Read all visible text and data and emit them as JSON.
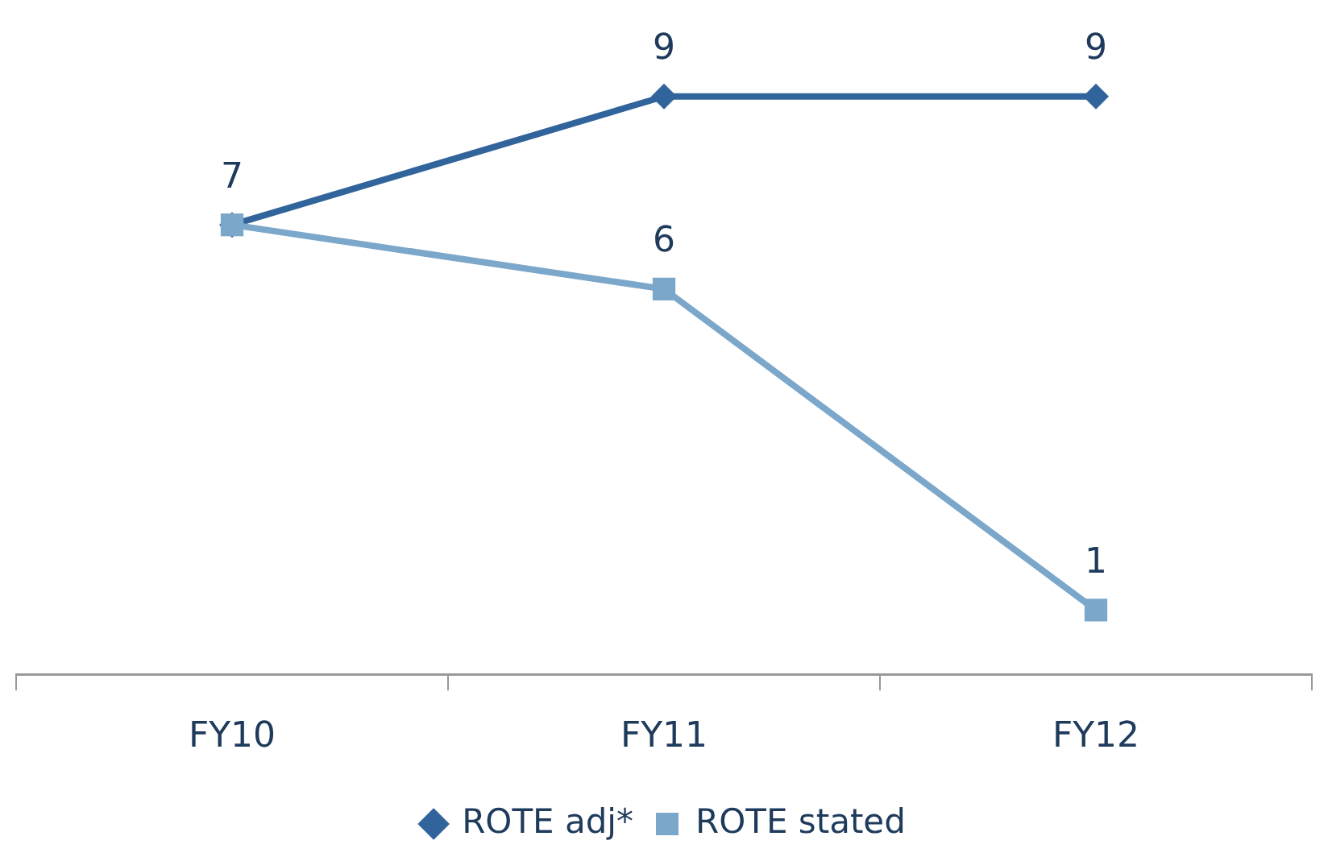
{
  "chart_data": {
    "type": "line",
    "categories": [
      "FY10",
      "FY11",
      "FY12"
    ],
    "series": [
      {
        "name": "ROTE adj*",
        "color": "#30649a",
        "values": [
          7,
          9,
          9
        ],
        "marker": "diamond",
        "value_labels": [
          "7",
          "9",
          "9"
        ]
      },
      {
        "name": "ROTE stated",
        "color": "#7ba7cb",
        "values": [
          7,
          6,
          1
        ],
        "marker": "square",
        "value_labels": [
          null,
          "6",
          "1"
        ]
      }
    ],
    "tick_labels": "x",
    "grid": false,
    "legend": "bottom"
  }
}
